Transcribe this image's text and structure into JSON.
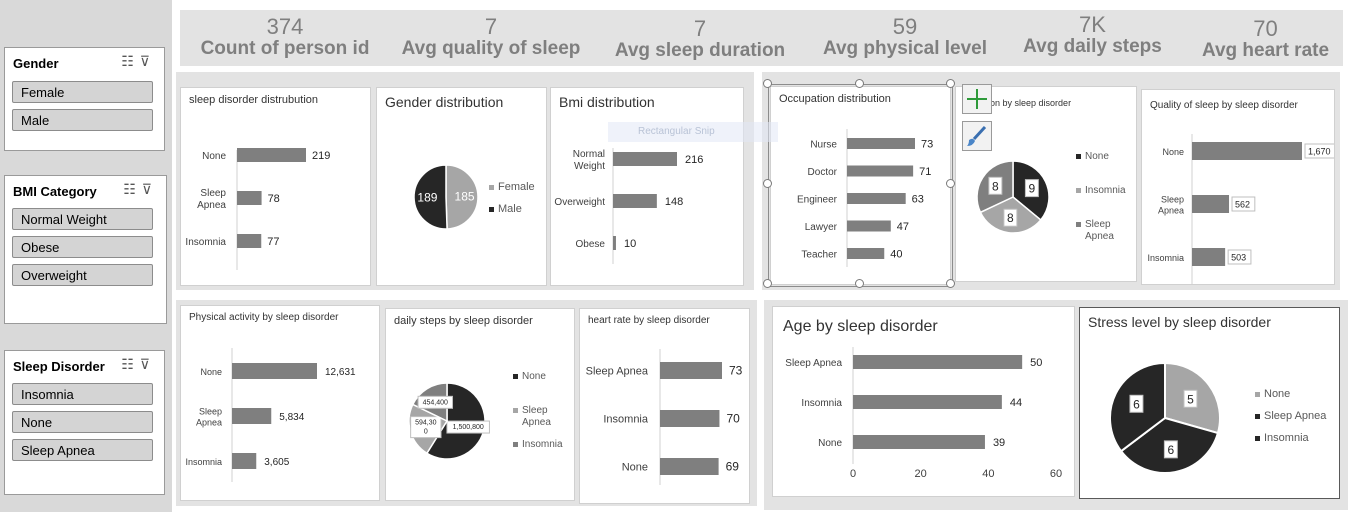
{
  "slicers": {
    "gender": {
      "title": "Gender",
      "items": [
        "Female",
        "Male"
      ]
    },
    "bmi": {
      "title": "BMI Category",
      "items": [
        "Normal Weight",
        "Obese",
        "Overweight"
      ]
    },
    "sleep": {
      "title": "Sleep Disorder",
      "items": [
        "Insomnia",
        "None",
        "Sleep Apnea"
      ]
    }
  },
  "kpis": [
    {
      "value": "374",
      "label": "Count of person id"
    },
    {
      "value": "7",
      "label": "Avg quality of sleep"
    },
    {
      "value": "7",
      "label": "Avg sleep duration"
    },
    {
      "value": "59",
      "label": "Avg physical level"
    },
    {
      "value": "7K",
      "label": "Avg daily steps"
    },
    {
      "value": "70",
      "label": "Avg heart rate"
    }
  ],
  "overlay": {
    "snip_text": "Rectangular Snip"
  },
  "colors": {
    "bar": "#7f7f7f",
    "dark": "#262626",
    "mid": "#a6a6a6",
    "band": "#e3e3e3"
  },
  "chart_data": [
    {
      "id": "sleep_dist",
      "type": "bar",
      "title": "sleep disorder distrubution",
      "categories": [
        "None",
        "Sleep Apnea",
        "Insomnia"
      ],
      "values": [
        219,
        78,
        77
      ],
      "value_labels": [
        "219",
        "78",
        "77"
      ]
    },
    {
      "id": "gender_dist",
      "type": "pie",
      "title": "Gender distribution",
      "categories": [
        "Female",
        "Male"
      ],
      "values": [
        185,
        189
      ],
      "value_labels": [
        "185",
        "189"
      ]
    },
    {
      "id": "bmi_dist",
      "type": "bar",
      "title": "Bmi distribution",
      "categories": [
        "Normal Weight",
        "Overweight",
        "Obese"
      ],
      "values": [
        216,
        148,
        10
      ],
      "value_labels": [
        "216",
        "148",
        "10"
      ]
    },
    {
      "id": "occupation_dist",
      "type": "bar",
      "title": "Occupation distribution",
      "categories": [
        "Nurse",
        "Doctor",
        "Engineer",
        "Lawyer",
        "Teacher"
      ],
      "values": [
        73,
        71,
        63,
        47,
        40
      ],
      "value_labels": [
        "73",
        "71",
        "63",
        "47",
        "40"
      ]
    },
    {
      "id": "duration_by_disorder",
      "type": "pie",
      "title": "S    uration by sleep disorder",
      "categories": [
        "None",
        "Insomnia",
        "Sleep Apnea"
      ],
      "values": [
        9,
        8,
        8
      ],
      "value_labels": [
        "9",
        "8",
        "8"
      ]
    },
    {
      "id": "quality_by_disorder",
      "type": "bar",
      "title": "Quality of sleep by sleep disorder",
      "categories": [
        "None",
        "Sleep Apnea",
        "Insomnia"
      ],
      "values": [
        1670,
        562,
        503
      ],
      "value_labels": [
        "1,670",
        "562",
        "503"
      ]
    },
    {
      "id": "activity_by_disorder",
      "type": "bar",
      "title": "Physical activity by sleep disorder",
      "categories": [
        "None",
        "Sleep Apnea",
        "Insomnia"
      ],
      "values": [
        12631,
        5834,
        3605
      ],
      "value_labels": [
        "12,631",
        "5,834",
        "3,605"
      ]
    },
    {
      "id": "steps_by_disorder",
      "type": "pie",
      "title": "daily steps by sleep disorder",
      "categories": [
        "None",
        "Sleep Apnea",
        "Insomnia"
      ],
      "values": [
        1500800,
        594300,
        454400
      ],
      "value_labels": [
        "1,500,800",
        "594,30 0",
        "454,400"
      ]
    },
    {
      "id": "hr_by_disorder",
      "type": "bar",
      "title": "heart rate by sleep disorder",
      "categories": [
        "Sleep Apnea",
        "Insomnia",
        "None"
      ],
      "values": [
        73,
        70,
        69
      ],
      "value_labels": [
        "73",
        "70",
        "69"
      ]
    },
    {
      "id": "age_by_disorder",
      "type": "bar",
      "title": "Age by sleep disorder",
      "categories": [
        "Sleep Apnea",
        "Insomnia",
        "None"
      ],
      "values": [
        50,
        44,
        39
      ],
      "value_labels": [
        "50",
        "44",
        "39"
      ],
      "xlim": [
        0,
        60
      ],
      "xticks": [
        "0",
        "20",
        "40",
        "60"
      ]
    },
    {
      "id": "stress_by_disorder",
      "type": "pie",
      "title": "Stress level by sleep disorder",
      "categories": [
        "None",
        "Sleep Apnea",
        "Insomnia"
      ],
      "values": [
        5,
        6,
        6
      ],
      "value_labels": [
        "5",
        "6",
        "6"
      ]
    }
  ]
}
